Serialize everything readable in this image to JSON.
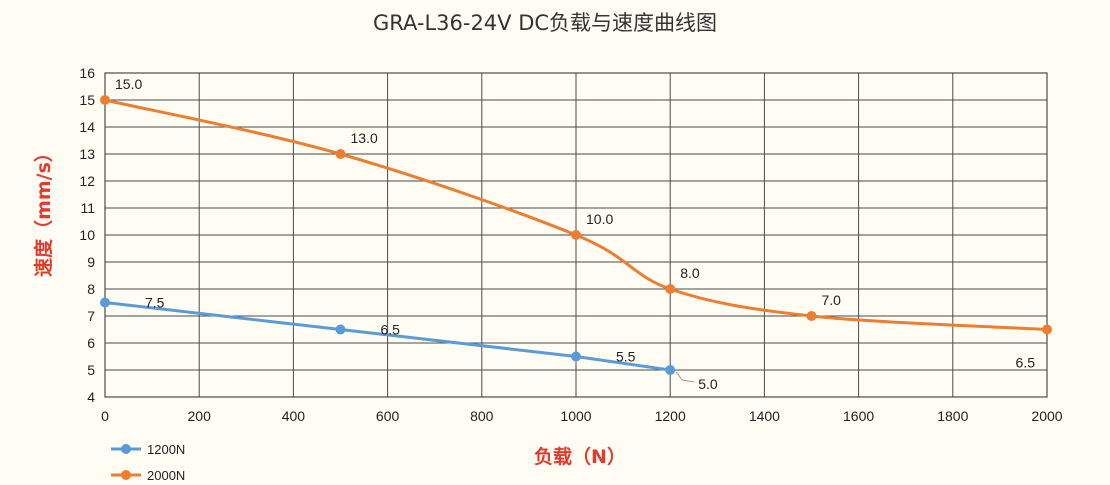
{
  "chart_data": {
    "type": "line",
    "title": "GRA-L36-24V DC负载与速度曲线图",
    "xlabel": "负载（N）",
    "ylabel": "速度（mm/s）",
    "xlim": [
      0,
      2000
    ],
    "ylim": [
      4,
      16
    ],
    "xticks": [
      0,
      200,
      400,
      600,
      800,
      1000,
      1200,
      1400,
      1600,
      1800,
      2000
    ],
    "yticks": [
      4,
      5,
      6,
      7,
      8,
      9,
      10,
      11,
      12,
      13,
      14,
      15,
      16
    ],
    "grid": true,
    "legend_position": "bottom-left",
    "series": [
      {
        "name": "1200N",
        "color": "#5b9bd5",
        "x": [
          0,
          500,
          1000,
          1200
        ],
        "y": [
          7.5,
          6.5,
          5.5,
          5.0
        ],
        "labels": [
          "7.5",
          "6.5",
          "5.5",
          "5.0"
        ]
      },
      {
        "name": "2000N",
        "color": "#ed7d31",
        "x": [
          0,
          500,
          1000,
          1200,
          1500,
          2000
        ],
        "y": [
          15.0,
          13.0,
          10.0,
          8.0,
          7.0,
          6.5
        ],
        "labels": [
          "15.0",
          "13.0",
          "10.0",
          "8.0",
          "7.0",
          "6.5"
        ]
      }
    ]
  }
}
